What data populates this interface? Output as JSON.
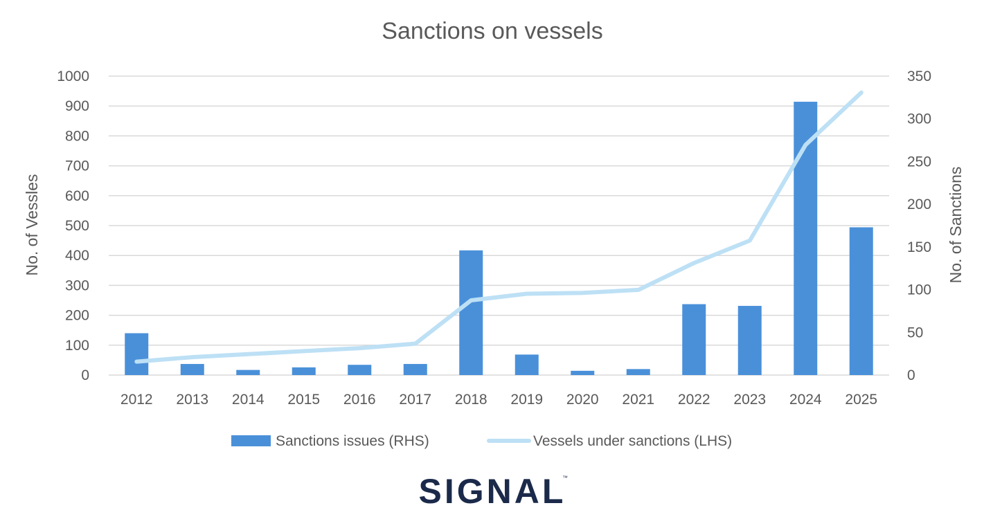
{
  "chart_data": {
    "type": "bar",
    "title": "Sanctions on vessels",
    "categories": [
      "2012",
      "2013",
      "2014",
      "2015",
      "2016",
      "2017",
      "2018",
      "2019",
      "2020",
      "2021",
      "2022",
      "2023",
      "2024",
      "2025"
    ],
    "series": [
      {
        "name": "Sanctions issues (RHS)",
        "type": "bar",
        "axis": "right",
        "color": "#4a90d9",
        "values": [
          49,
          13,
          6,
          9,
          12,
          13,
          146,
          24,
          5,
          7,
          83,
          81,
          320,
          173
        ]
      },
      {
        "name": "Vessels under sanctions (LHS)",
        "type": "line",
        "axis": "left",
        "color": "#bde0f5",
        "values": [
          45,
          60,
          70,
          80,
          90,
          105,
          250,
          272,
          275,
          285,
          375,
          450,
          770,
          945
        ]
      }
    ],
    "yaxis_left": {
      "label": "No. of Vessles",
      "range": [
        0,
        1000
      ],
      "ticks": [
        "0",
        "100",
        "200",
        "300",
        "400",
        "500",
        "600",
        "700",
        "800",
        "900",
        "1000"
      ]
    },
    "yaxis_right": {
      "label": "No. of Sanctions",
      "range": [
        0,
        350
      ],
      "ticks": [
        "0",
        "50",
        "100",
        "150",
        "200",
        "250",
        "300",
        "350"
      ]
    },
    "grid": true,
    "legend_position": "bottom"
  },
  "logo": {
    "text": "SIGNAL",
    "mark": "™"
  }
}
